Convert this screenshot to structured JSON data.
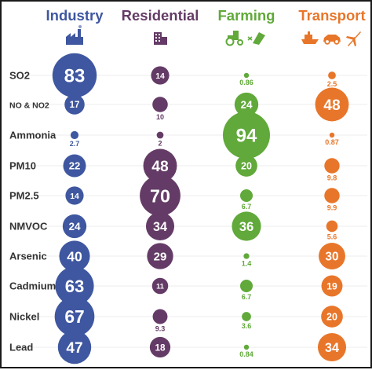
{
  "chart_data": {
    "type": "bubble-matrix",
    "title": "",
    "categories": [
      "SO2",
      "NO & NO2",
      "Ammonia",
      "PM10",
      "PM2.5",
      "NMVOC",
      "Arsenic",
      "Cadmium",
      "Nickel",
      "Lead"
    ],
    "series": [
      {
        "name": "Industry",
        "color": "#3f57a0",
        "icon": "factory-icon",
        "values": [
          "83",
          "17",
          "2.7",
          "22",
          "14",
          "24",
          "40",
          "63",
          "67",
          "47"
        ]
      },
      {
        "name": "Residential",
        "color": "#643b66",
        "icon": "building-icon",
        "values": [
          "14",
          "10",
          "2",
          "48",
          "70",
          "34",
          "29",
          "11",
          "9.3",
          "18"
        ]
      },
      {
        "name": "Farming",
        "color": "#60a93a",
        "icon": "tractor-icon",
        "icon2": "fertilizer-icon",
        "values": [
          "0.86",
          "24",
          "94",
          "20",
          "6.7",
          "36",
          "1.4",
          "6.7",
          "3.6",
          "0.84"
        ]
      },
      {
        "name": "Transport",
        "color": "#e8762a",
        "icon": "ship-icon",
        "icon2": "car-icon",
        "icon3": "plane-icon",
        "values": [
          "2.5",
          "48",
          "0.87",
          "9.8",
          "9.9",
          "5.6",
          "30",
          "19",
          "20",
          "34"
        ]
      }
    ],
    "grid": false,
    "legend": "none"
  }
}
